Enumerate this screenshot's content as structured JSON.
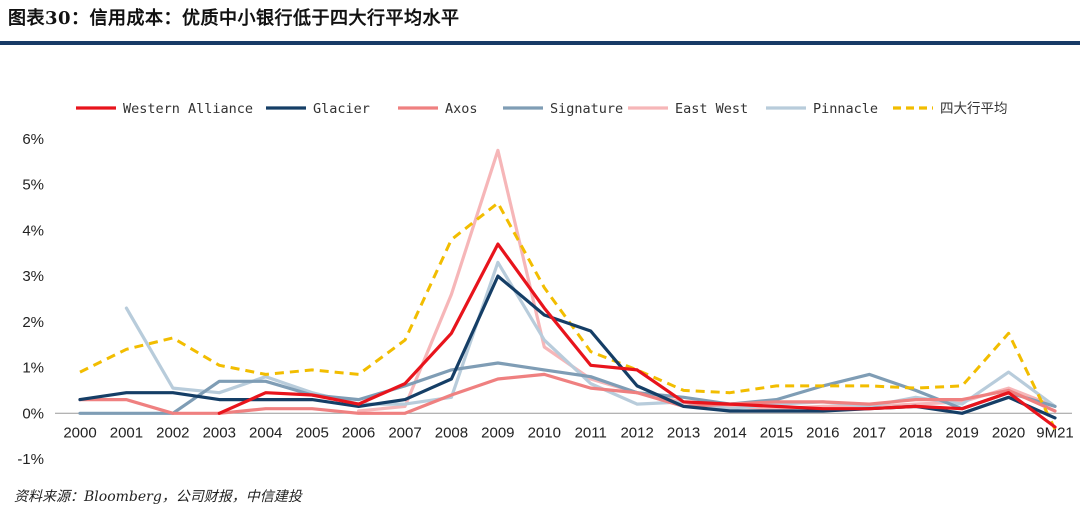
{
  "header": {
    "title": "图表30：信用成本：优质中小银行低于四大行平均水平"
  },
  "footer": {
    "source": "资料来源：Bloomberg，公司财报，中信建投"
  },
  "chart_data": {
    "type": "line",
    "title": "",
    "xlabel": "",
    "ylabel": "",
    "ylim": [
      -1,
      6
    ],
    "yticks": [
      "-1%",
      "0%",
      "1%",
      "2%",
      "3%",
      "4%",
      "5%",
      "6%"
    ],
    "grid": "horizontal",
    "legend_position": "top",
    "categories": [
      "2000",
      "2001",
      "2002",
      "2003",
      "2004",
      "2005",
      "2006",
      "2007",
      "2008",
      "2009",
      "2010",
      "2011",
      "2012",
      "2013",
      "2014",
      "2015",
      "2016",
      "2017",
      "2018",
      "2019",
      "2020",
      "9M21"
    ],
    "series": [
      {
        "name": "Western Alliance",
        "color": "#e8141c",
        "dash": false,
        "values": [
          null,
          null,
          null,
          0.0,
          0.45,
          0.4,
          0.2,
          0.65,
          1.75,
          3.7,
          2.3,
          1.05,
          0.95,
          0.25,
          0.2,
          0.15,
          0.1,
          0.1,
          0.15,
          0.1,
          0.45,
          -0.3
        ]
      },
      {
        "name": "Glacier",
        "color": "#153e66",
        "dash": false,
        "values": [
          0.3,
          0.45,
          0.45,
          0.3,
          0.3,
          0.3,
          0.15,
          0.3,
          0.75,
          3.0,
          2.15,
          1.8,
          0.6,
          0.15,
          0.05,
          0.05,
          0.05,
          0.1,
          0.15,
          0.0,
          0.35,
          -0.1
        ]
      },
      {
        "name": "Axos",
        "color": "#ef8080",
        "dash": false,
        "values": [
          0.3,
          0.3,
          0.0,
          0.0,
          0.1,
          0.1,
          0.0,
          0.0,
          0.4,
          0.75,
          0.85,
          0.55,
          0.45,
          0.15,
          0.2,
          0.25,
          0.25,
          0.2,
          0.3,
          0.3,
          0.5,
          0.05
        ]
      },
      {
        "name": "Signature",
        "color": "#7f9db5",
        "dash": false,
        "values": [
          0.0,
          0.0,
          0.0,
          0.7,
          0.7,
          0.4,
          0.3,
          0.6,
          0.95,
          1.1,
          0.95,
          0.8,
          0.45,
          0.35,
          0.2,
          0.3,
          0.6,
          0.85,
          0.5,
          0.1,
          0.45,
          0.15
        ]
      },
      {
        "name": "East West",
        "color": "#f6b6b8",
        "dash": false,
        "values": [
          null,
          null,
          null,
          null,
          null,
          null,
          0.05,
          0.15,
          2.6,
          5.75,
          1.45,
          0.75,
          0.45,
          0.25,
          0.15,
          0.1,
          0.15,
          0.15,
          0.2,
          0.25,
          0.55,
          0.15
        ]
      },
      {
        "name": "Pinnacle",
        "color": "#b8ccdb",
        "dash": false,
        "values": [
          null,
          2.3,
          0.55,
          0.45,
          0.8,
          0.45,
          0.2,
          0.2,
          0.35,
          3.3,
          1.6,
          0.65,
          0.2,
          0.25,
          0.1,
          0.2,
          0.25,
          0.15,
          0.35,
          0.2,
          0.9,
          0.15
        ]
      },
      {
        "name": "四大行平均",
        "color": "#f2bd00",
        "dash": true,
        "values": [
          0.9,
          1.4,
          1.65,
          1.05,
          0.85,
          0.95,
          0.85,
          1.6,
          3.8,
          4.6,
          2.75,
          1.35,
          0.95,
          0.5,
          0.45,
          0.6,
          0.6,
          0.6,
          0.55,
          0.6,
          1.75,
          -0.35
        ]
      }
    ]
  }
}
